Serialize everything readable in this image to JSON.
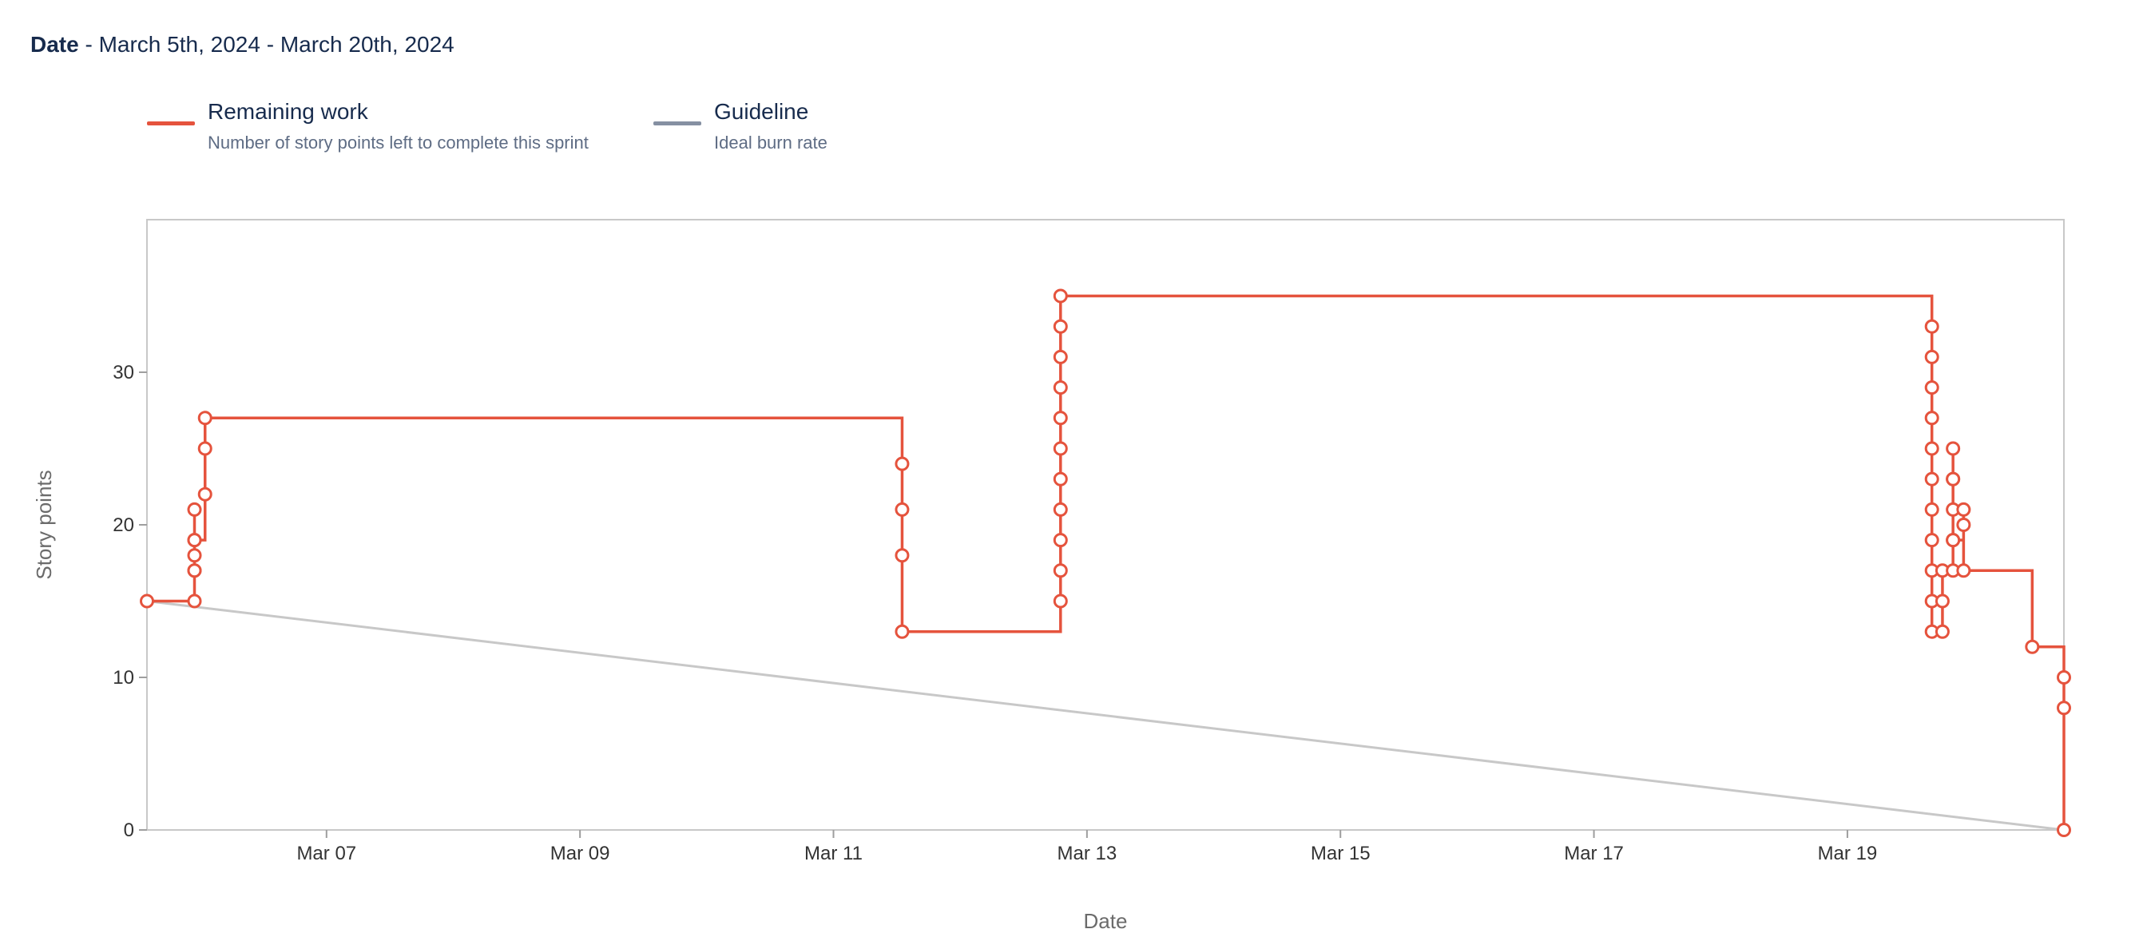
{
  "header": {
    "label": "Date",
    "range": " - March 5th, 2024 - March 20th, 2024"
  },
  "legend": [
    {
      "title": "Remaining work",
      "description": "Number of story points left to complete this sprint",
      "color": "#e5533d"
    },
    {
      "title": "Guideline",
      "description": "Ideal burn rate",
      "color": "#8590a2"
    }
  ],
  "chart_data": {
    "type": "line",
    "title": "",
    "xlabel": "Date",
    "ylabel": "Story points",
    "x_range": [
      "2024-03-05 14:00",
      "2024-03-20 17:00"
    ],
    "ylim": [
      0,
      40
    ],
    "y_ticks": [
      0,
      10,
      20,
      30
    ],
    "x_ticks": [
      {
        "label": "Mar 07",
        "date": "2024-03-07 00:00"
      },
      {
        "label": "Mar 09",
        "date": "2024-03-09 00:00"
      },
      {
        "label": "Mar 11",
        "date": "2024-03-11 00:00"
      },
      {
        "label": "Mar 13",
        "date": "2024-03-13 00:00"
      },
      {
        "label": "Mar 15",
        "date": "2024-03-15 00:00"
      },
      {
        "label": "Mar 17",
        "date": "2024-03-17 00:00"
      },
      {
        "label": "Mar 19",
        "date": "2024-03-19 00:00"
      }
    ],
    "grid": false,
    "series": [
      {
        "name": "Remaining work",
        "color": "#e5533d",
        "step": true,
        "points": [
          [
            "2024-03-05 14:00",
            15
          ],
          [
            "2024-03-05 23:00",
            15
          ],
          [
            "2024-03-05 23:00",
            17
          ],
          [
            "2024-03-05 23:00",
            18
          ],
          [
            "2024-03-05 23:00",
            19
          ],
          [
            "2024-03-05 23:00",
            21
          ],
          [
            "2024-03-05 23:00",
            17
          ],
          [
            "2024-03-05 23:00",
            19
          ],
          [
            "2024-03-06 01:00",
            22
          ],
          [
            "2024-03-06 01:00",
            25
          ],
          [
            "2024-03-06 01:00",
            27
          ],
          [
            "2024-03-11 13:00",
            24
          ],
          [
            "2024-03-11 13:00",
            21
          ],
          [
            "2024-03-11 13:00",
            18
          ],
          [
            "2024-03-11 13:00",
            13
          ],
          [
            "2024-03-12 19:00",
            15
          ],
          [
            "2024-03-12 19:00",
            17
          ],
          [
            "2024-03-12 19:00",
            19
          ],
          [
            "2024-03-12 19:00",
            21
          ],
          [
            "2024-03-12 19:00",
            23
          ],
          [
            "2024-03-12 19:00",
            25
          ],
          [
            "2024-03-12 19:00",
            27
          ],
          [
            "2024-03-12 19:00",
            29
          ],
          [
            "2024-03-12 19:00",
            31
          ],
          [
            "2024-03-12 19:00",
            33
          ],
          [
            "2024-03-12 19:00",
            35
          ],
          [
            "2024-03-19 16:00",
            33
          ],
          [
            "2024-03-19 16:00",
            31
          ],
          [
            "2024-03-19 16:00",
            29
          ],
          [
            "2024-03-19 16:00",
            27
          ],
          [
            "2024-03-19 16:00",
            25
          ],
          [
            "2024-03-19 16:00",
            23
          ],
          [
            "2024-03-19 16:00",
            21
          ],
          [
            "2024-03-19 16:00",
            19
          ],
          [
            "2024-03-19 16:00",
            17
          ],
          [
            "2024-03-19 16:00",
            15
          ],
          [
            "2024-03-19 16:00",
            13
          ],
          [
            "2024-03-19 18:00",
            13
          ],
          [
            "2024-03-19 18:00",
            15
          ],
          [
            "2024-03-19 18:00",
            17
          ],
          [
            "2024-03-19 20:00",
            17
          ],
          [
            "2024-03-19 20:00",
            19
          ],
          [
            "2024-03-19 20:00",
            21
          ],
          [
            "2024-03-19 20:00",
            23
          ],
          [
            "2024-03-19 20:00",
            25
          ],
          [
            "2024-03-19 20:00",
            23
          ],
          [
            "2024-03-19 20:00",
            19
          ],
          [
            "2024-03-19 22:00",
            21
          ],
          [
            "2024-03-19 22:00",
            20
          ],
          [
            "2024-03-19 22:00",
            17
          ],
          [
            "2024-03-20 11:00",
            12
          ],
          [
            "2024-03-20 17:00",
            10
          ],
          [
            "2024-03-20 17:00",
            8
          ],
          [
            "2024-03-20 17:00",
            0
          ]
        ]
      },
      {
        "name": "Guideline",
        "color": "#c8c8c8",
        "points": [
          [
            "2024-03-05 14:00",
            15
          ],
          [
            "2024-03-20 17:00",
            0
          ]
        ]
      }
    ]
  }
}
